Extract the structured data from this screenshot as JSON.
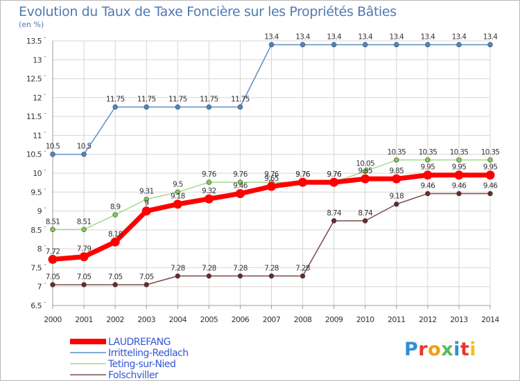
{
  "title": "Evolution du Taux de Taxe Foncière sur les Propriétés Bâties",
  "unit": "(en %)",
  "logo": {
    "text": "Proxiti",
    "colors": [
      "#2f8fd6",
      "#e8372b",
      "#f39c12",
      "#5cb85c",
      "#2f8fd6",
      "#e8372b",
      "#f1c40f"
    ]
  },
  "chart_data": {
    "type": "line",
    "title": "Evolution du Taux de Taxe Foncière sur les Propriétés Bâties",
    "ylabel": "(en %)",
    "xlabel": "",
    "x": [
      "2000",
      "2001",
      "2002",
      "2003",
      "2004",
      "2005",
      "2006",
      "2007",
      "2008",
      "2009",
      "2010",
      "2011",
      "2012",
      "2013",
      "2014"
    ],
    "ylim": [
      6.5,
      13.5
    ],
    "yticks": [
      "6.5",
      "7",
      "7.5",
      "8",
      "8.5",
      "9",
      "9.5",
      "10",
      "10.5",
      "11",
      "11.5",
      "12",
      "12.5",
      "13",
      "13.5"
    ],
    "grid": true,
    "legend_position": "bottom-left",
    "series": [
      {
        "name": "Irritteling-Redlach",
        "color": "#5b8ec4",
        "marker": "#4a88c8",
        "width": 1.5,
        "values": [
          10.5,
          10.5,
          11.75,
          11.75,
          11.75,
          11.75,
          11.75,
          13.4,
          13.4,
          13.4,
          13.4,
          13.4,
          13.4,
          13.4,
          13.4
        ],
        "labels": [
          "10.5",
          "10.5",
          "11.75",
          "11.75",
          "11.75",
          "11.75",
          "11.75",
          "13.4",
          "13.4",
          "13.4",
          "13.4",
          "13.4",
          "13.4",
          "13.4",
          "13.4"
        ]
      },
      {
        "name": "Teting-sur-Nied",
        "color": "#a8d88e",
        "marker": "#7ec850",
        "width": 1.5,
        "values": [
          8.51,
          8.51,
          8.9,
          9.31,
          9.5,
          9.76,
          9.76,
          9.76,
          9.76,
          9.76,
          10.05,
          10.35,
          10.35,
          10.35,
          10.35
        ],
        "labels": [
          "8.51",
          "8.51",
          "8.9",
          "9.31",
          "9.5",
          "9.76",
          "9.76",
          "9.76",
          "9.76",
          "9.76",
          "10.05",
          "10.35",
          "10.35",
          "10.35",
          "10.35"
        ]
      },
      {
        "name": "Folschviller",
        "color": "#7a4a4a",
        "marker": "#6b2a2a",
        "width": 1.5,
        "values": [
          7.05,
          7.05,
          7.05,
          7.05,
          7.28,
          7.28,
          7.28,
          7.28,
          7.28,
          8.74,
          8.74,
          9.18,
          9.46,
          9.46,
          9.46
        ],
        "labels": [
          "7.05",
          "7.05",
          "7.05",
          "7.05",
          "7.28",
          "7.28",
          "7.28",
          "7.28",
          "7.28",
          "8.74",
          "8.74",
          "9.18",
          "9.46",
          "9.46",
          "9.46"
        ]
      },
      {
        "name": "LAUDREFANG",
        "color": "#ff0000",
        "marker": "#ff0000",
        "width": 7,
        "values": [
          7.72,
          7.79,
          8.18,
          9.0,
          9.18,
          9.32,
          9.46,
          9.65,
          9.76,
          9.76,
          9.85,
          9.85,
          9.95,
          9.95,
          9.95
        ],
        "labels": [
          "7.72",
          "7.79",
          "8.18",
          "9",
          "9.18",
          "9.32",
          "9.46",
          "9.65",
          "9.76",
          "9.76",
          "9.85",
          "9.85",
          "9.95",
          "9.95",
          "9.95"
        ]
      }
    ],
    "legend_order": [
      "LAUDREFANG",
      "Irritteling-Redlach",
      "Teting-sur-Nied",
      "Folschviller"
    ]
  }
}
